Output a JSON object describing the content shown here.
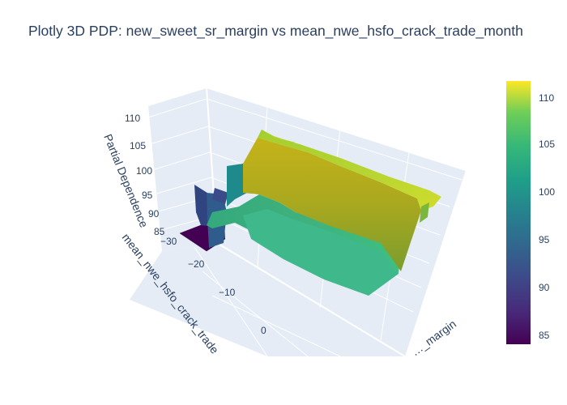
{
  "chart_data": {
    "type": "surface",
    "title": "Plotly 3D PDP: new_sweet_sr_margin vs mean_nwe_hsfo_crack_trade_month",
    "xlabel": "mean_nwe_hsfo_crack_trade",
    "ylabel": "…_margin",
    "zlabel": "Partial Dependence",
    "x_ticks": [
      "−30",
      "−20",
      "−10",
      "0"
    ],
    "z_ticks": [
      "85",
      "90",
      "95",
      "100",
      "105",
      "110"
    ],
    "colorbar": {
      "colorscale": "Viridis",
      "range": [
        84,
        111
      ],
      "ticks": [
        "85",
        "90",
        "95",
        "100",
        "105",
        "110"
      ]
    },
    "surface_levels": {
      "low_region": 84,
      "step_region": 92,
      "mid_ridge": 101,
      "upper_plateau": 108,
      "peak": 110
    }
  }
}
